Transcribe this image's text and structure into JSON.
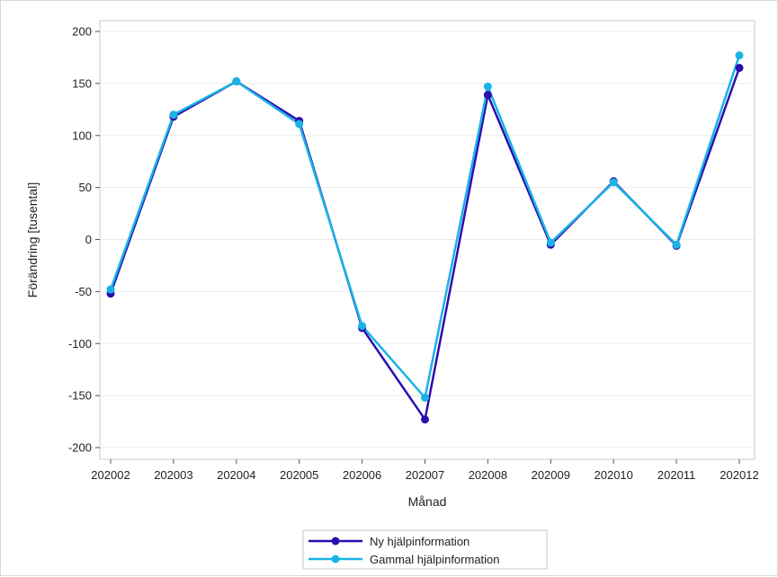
{
  "chart_data": {
    "type": "line",
    "title": "",
    "xlabel": "Månad",
    "ylabel": "Förändring [tusental]",
    "categories": [
      "202002",
      "202003",
      "202004",
      "202005",
      "202006",
      "202007",
      "202008",
      "202009",
      "202010",
      "202011",
      "202012"
    ],
    "ylim": [
      -210,
      210
    ],
    "yticks": [
      -200,
      -150,
      -100,
      -50,
      0,
      50,
      100,
      150,
      200
    ],
    "grid": "horizontal",
    "legend_position": "bottom-center",
    "series": [
      {
        "name": "Ny hjälpinformation",
        "color": "#2a0fb0",
        "values": [
          -52,
          118,
          152,
          114,
          -85,
          -173,
          139,
          -5,
          56,
          -6,
          165
        ]
      },
      {
        "name": "Gammal hjälpinformation",
        "color": "#1ab3e6",
        "values": [
          -48,
          120,
          152,
          111,
          -83,
          -152,
          147,
          -3,
          55,
          -5,
          177
        ]
      }
    ]
  }
}
